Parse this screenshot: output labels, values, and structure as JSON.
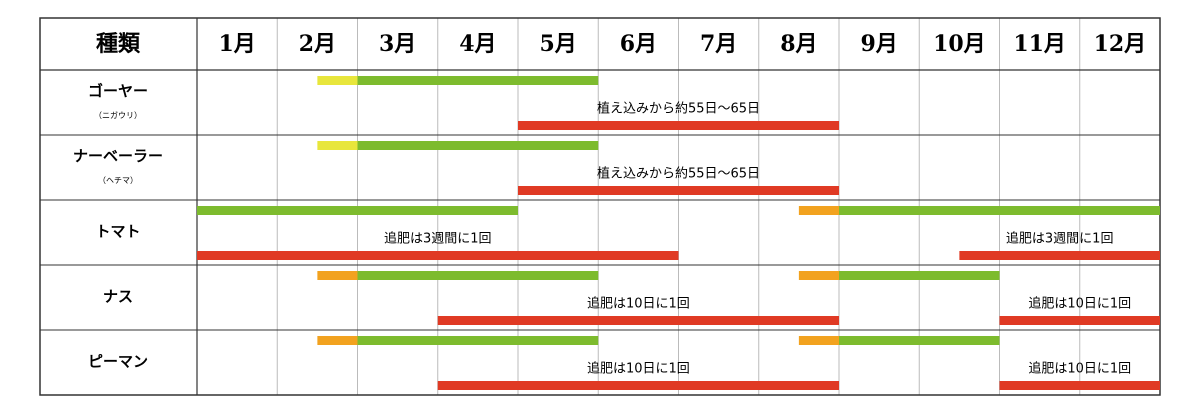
{
  "header": {
    "title": "種類",
    "months": [
      "1月",
      "2月",
      "3月",
      "4月",
      "5月",
      "6月",
      "7月",
      "8月",
      "9月",
      "10月",
      "11月",
      "12月"
    ]
  },
  "rows": [
    {
      "name": "ゴーヤー",
      "sub": "（ニガウリ）",
      "bars": [
        {
          "color": "#e8e63c",
          "start": 1.5,
          "end": 2
        },
        {
          "color": "#7dbb2e",
          "start": 2,
          "end": 5
        },
        {
          "color": "#e03a24",
          "start": 4,
          "end": 8,
          "label": "植え込みから約55日～65日"
        }
      ]
    },
    {
      "name": "ナーベーラー",
      "sub": "（ヘチマ）",
      "bars": [
        {
          "color": "#e8e63c",
          "start": 1.5,
          "end": 2
        },
        {
          "color": "#7dbb2e",
          "start": 2,
          "end": 5
        },
        {
          "color": "#e03a24",
          "start": 4,
          "end": 8,
          "label": "植え込みから約55日～65日"
        }
      ]
    },
    {
      "name": "トマト",
      "bars": [
        {
          "color": "#7dbb2e",
          "start": 0,
          "end": 4
        },
        {
          "color": "#f2a21f",
          "start": 7.5,
          "end": 8
        },
        {
          "color": "#7dbb2e",
          "start": 8,
          "end": 12
        },
        {
          "color": "#e03a24",
          "start": 0,
          "end": 6,
          "label": "追肥は3週間に1回"
        },
        {
          "color": "#e03a24",
          "start": 9.5,
          "end": 12,
          "label": "追肥は3週間に1回"
        }
      ]
    },
    {
      "name": "ナス",
      "bars": [
        {
          "color": "#f2a21f",
          "start": 1.5,
          "end": 2
        },
        {
          "color": "#7dbb2e",
          "start": 2,
          "end": 5
        },
        {
          "color": "#f2a21f",
          "start": 7.5,
          "end": 8
        },
        {
          "color": "#7dbb2e",
          "start": 8,
          "end": 10
        },
        {
          "color": "#e03a24",
          "start": 3,
          "end": 8,
          "label": "追肥は10日に1回"
        },
        {
          "color": "#e03a24",
          "start": 10,
          "end": 12,
          "label": "追肥は10日に1回"
        }
      ]
    },
    {
      "name": "ピーマン",
      "bars": [
        {
          "color": "#f2a21f",
          "start": 1.5,
          "end": 2
        },
        {
          "color": "#7dbb2e",
          "start": 2,
          "end": 5
        },
        {
          "color": "#f2a21f",
          "start": 7.5,
          "end": 8
        },
        {
          "color": "#7dbb2e",
          "start": 8,
          "end": 10
        },
        {
          "color": "#e03a24",
          "start": 3,
          "end": 8,
          "label": "追肥は10日に1回"
        },
        {
          "color": "#e03a24",
          "start": 10,
          "end": 12,
          "label": "追肥は10日に1回"
        }
      ]
    }
  ]
}
